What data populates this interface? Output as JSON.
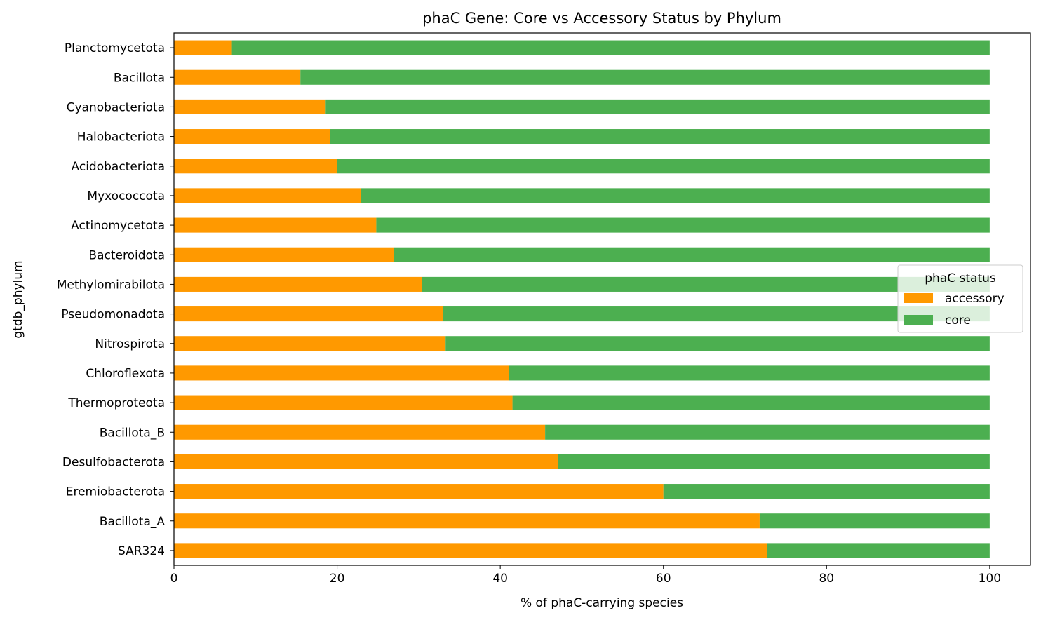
{
  "chart_data": {
    "type": "bar",
    "orientation": "horizontal",
    "stacked": true,
    "title": "phaC Gene: Core vs Accessory Status by Phylum",
    "xlabel": "% of phaC-carrying species",
    "ylabel": "gtdb_phylum",
    "xlim": [
      0,
      105
    ],
    "xticks": [
      0,
      20,
      40,
      60,
      80,
      100
    ],
    "grid": false,
    "legend": {
      "title": "phaC status",
      "placement": "center-right"
    },
    "categories": [
      "Planctomycetota",
      "Bacillota",
      "Cyanobacteriota",
      "Halobacteriota",
      "Acidobacteriota",
      "Myxococcota",
      "Actinomycetota",
      "Bacteroidota",
      "Methylomirabilota",
      "Pseudomonadota",
      "Nitrospirota",
      "Chloroflexota",
      "Thermoproteota",
      "Bacillota_B",
      "Desulfobacterota",
      "Eremiobacterota",
      "Bacillota_A",
      "SAR324"
    ],
    "series": [
      {
        "name": "accessory",
        "color": "#ff9900",
        "values": [
          7.1,
          15.5,
          18.6,
          19.1,
          20.0,
          22.9,
          24.8,
          27.0,
          30.4,
          33.0,
          33.3,
          41.1,
          41.5,
          45.5,
          47.1,
          60.0,
          71.8,
          72.7
        ]
      },
      {
        "name": "core",
        "color": "#4caf50",
        "values": [
          92.9,
          84.5,
          81.4,
          80.9,
          80.0,
          77.1,
          75.2,
          73.0,
          69.6,
          67.0,
          66.7,
          58.9,
          58.5,
          54.5,
          52.9,
          40.0,
          28.2,
          27.3
        ]
      }
    ]
  }
}
